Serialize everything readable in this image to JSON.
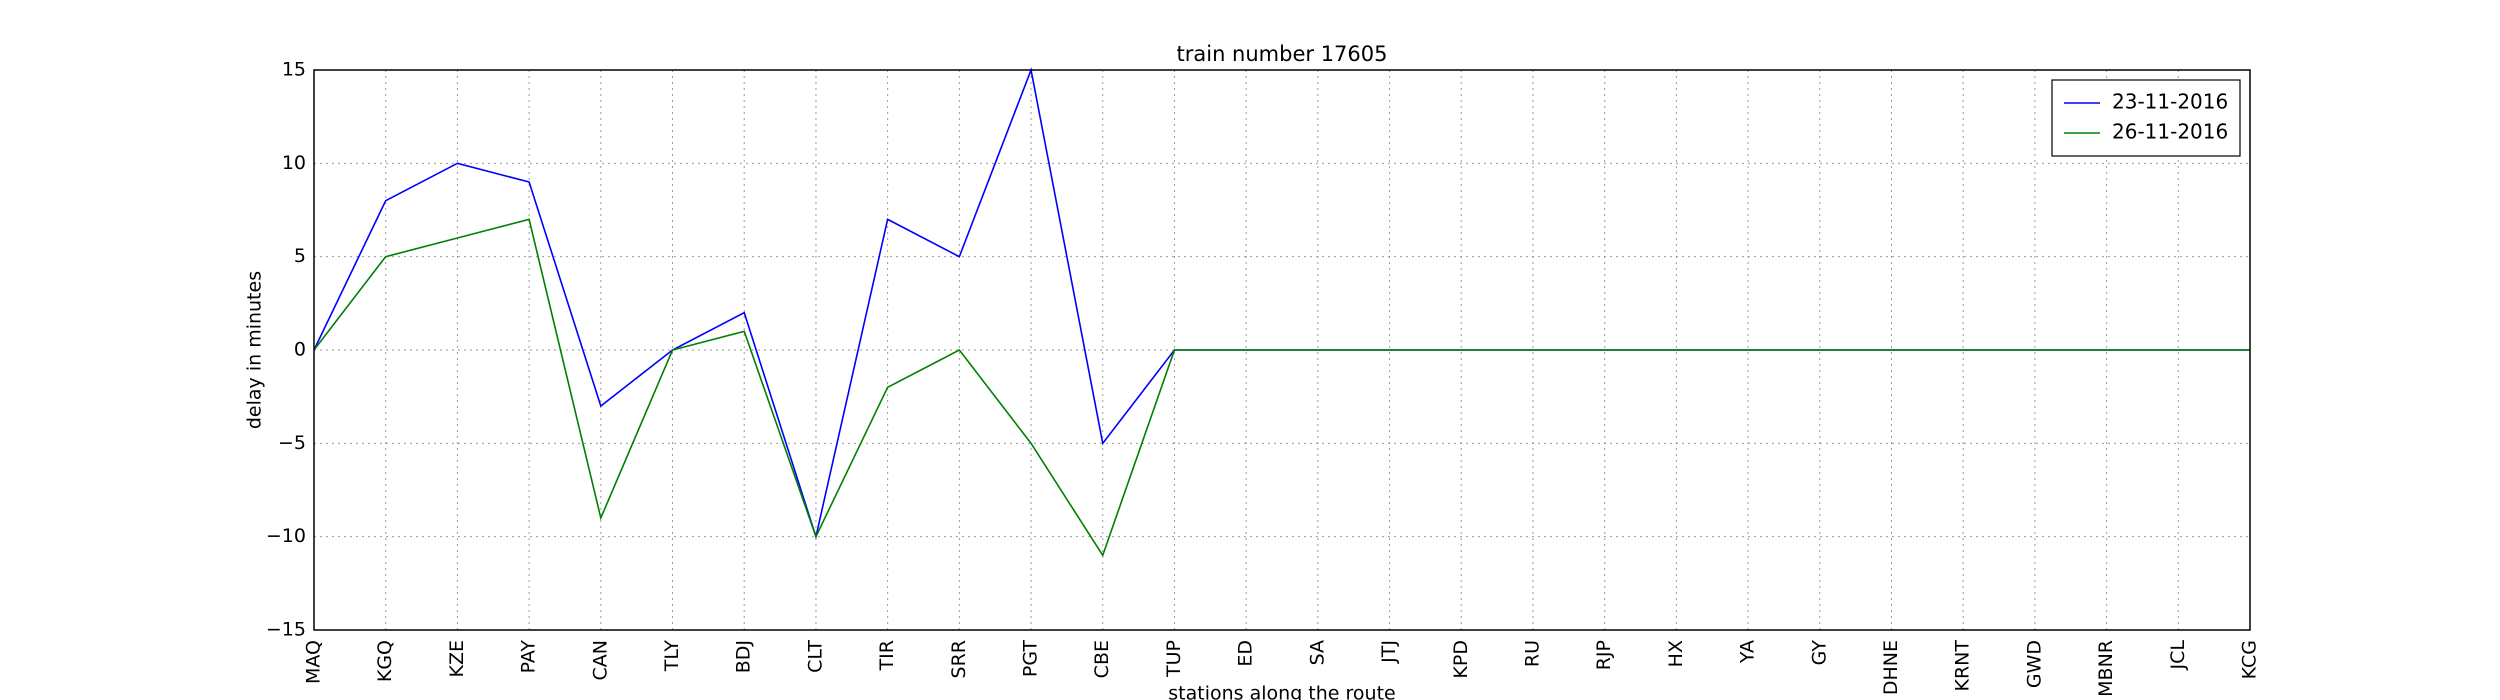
{
  "chart_data": {
    "type": "line",
    "title": "train number 17605",
    "x_label": "stations along the route",
    "y_label": "delay in minutes",
    "categories": [
      "MAQ",
      "KGQ",
      "KZE",
      "PAY",
      "CAN",
      "TLY",
      "BDJ",
      "CLT",
      "TIR",
      "SRR",
      "PGT",
      "CBE",
      "TUP",
      "ED",
      "SA",
      "JTJ",
      "KPD",
      "RU",
      "RJP",
      "HX",
      "YA",
      "GY",
      "DHNE",
      "KRNT",
      "GWD",
      "MBNR",
      "JCL",
      "KCG"
    ],
    "series": [
      {
        "name": "23-11-2016",
        "color": "#0000ff",
        "values": [
          0,
          8,
          10,
          9,
          -3,
          0,
          2,
          -10,
          7,
          5,
          15,
          -5,
          0,
          0,
          0,
          0,
          0,
          0,
          0,
          0,
          0,
          0,
          0,
          0,
          0,
          0,
          0,
          0
        ]
      },
      {
        "name": "26-11-2016",
        "color": "#008000",
        "values": [
          0,
          5,
          6,
          7,
          -9,
          0,
          1,
          -10,
          -2,
          0,
          -5,
          -11,
          0,
          0,
          0,
          0,
          0,
          0,
          0,
          0,
          0,
          0,
          0,
          0,
          0,
          0,
          0,
          0
        ]
      }
    ],
    "ylim": [
      -15,
      15
    ],
    "yticks": [
      {
        "value": -15,
        "label": "−15"
      },
      {
        "value": -10,
        "label": "−10"
      },
      {
        "value": -5,
        "label": "−5"
      },
      0,
      5,
      10,
      15
    ],
    "grid": true,
    "legend": "upper right"
  }
}
